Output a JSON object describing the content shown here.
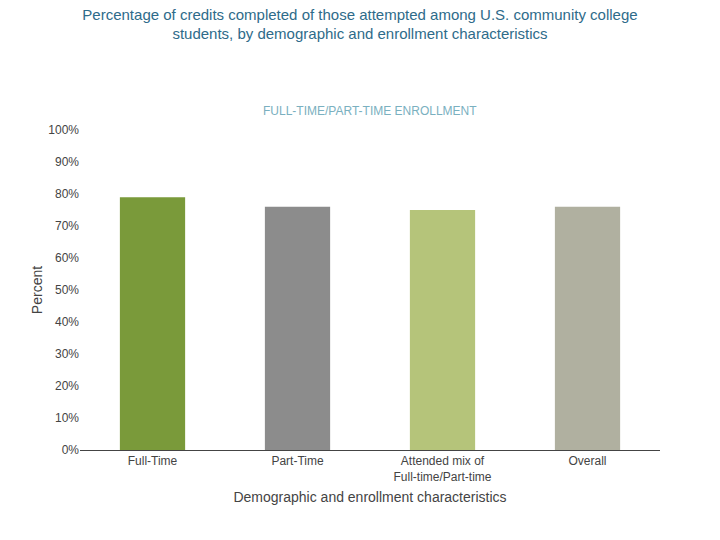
{
  "chart_data": {
    "type": "bar",
    "title": "Percentage of credits completed of those attempted among U.S. community college\nstudents, by demographic and enrollment characteristics",
    "subtitle": "FULL-TIME/PART-TIME ENROLLMENT",
    "categories": [
      "Full-Time",
      "Part-Time",
      "Attended mix of\nFull-time/Part-time",
      "Overall"
    ],
    "values": [
      79,
      76,
      75,
      76
    ],
    "colors": [
      "#7a9a3a",
      "#8c8c8c",
      "#b5c47a",
      "#b0b0a0"
    ],
    "ylabel": "Percent",
    "xlabel": "Demographic and enrollment characteristics",
    "ylim": [
      0,
      100
    ],
    "yticks": [
      {
        "value": 0,
        "label": "0%"
      },
      {
        "value": 10,
        "label": "10%"
      },
      {
        "value": 20,
        "label": "20%"
      },
      {
        "value": 30,
        "label": "30%"
      },
      {
        "value": 40,
        "label": "40%"
      },
      {
        "value": 50,
        "label": "50%"
      },
      {
        "value": 60,
        "label": "60%"
      },
      {
        "value": 70,
        "label": "70%"
      },
      {
        "value": 80,
        "label": "80%"
      },
      {
        "value": 90,
        "label": "90%"
      },
      {
        "value": 100,
        "label": "100%"
      }
    ],
    "grid": false
  }
}
